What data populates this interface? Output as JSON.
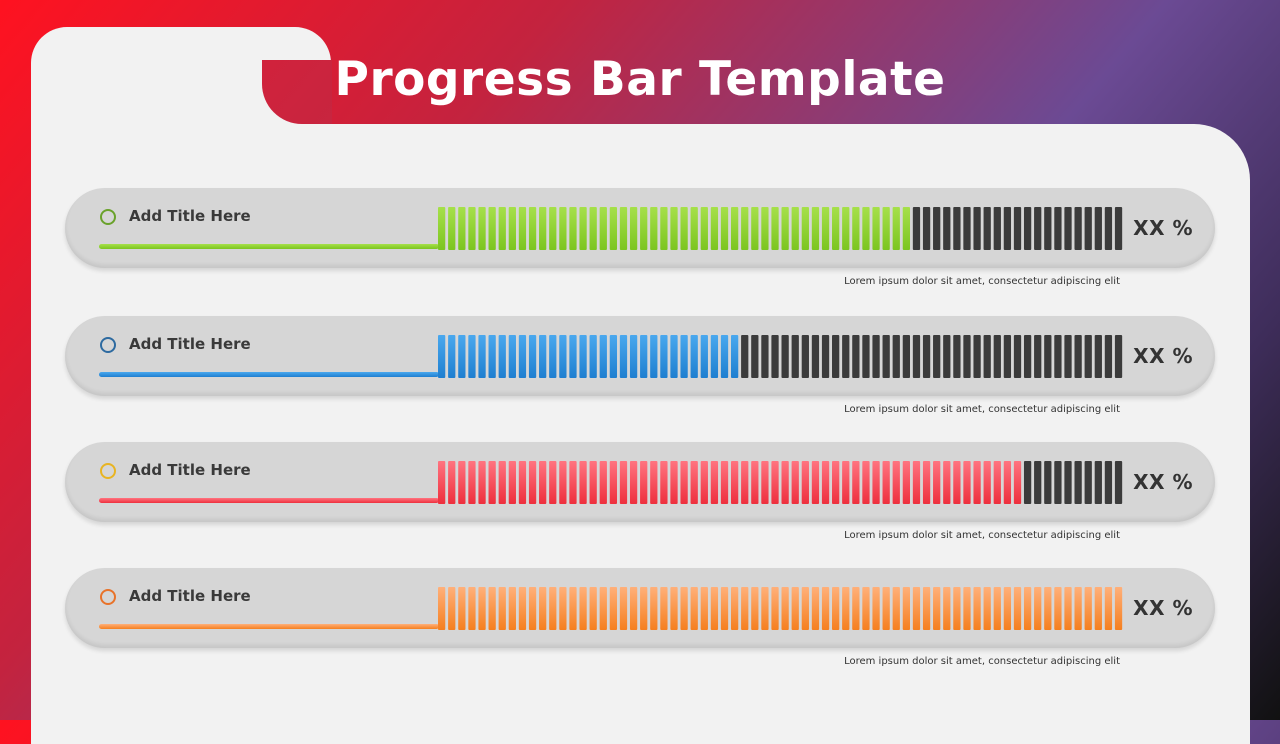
{
  "slide": {
    "title": "Progress Bar Template"
  },
  "rows": [
    {
      "label": "Add Title Here",
      "percent_label": "XX %",
      "caption": "Lorem ipsum dolor sit amet, consectetur adipiscing elit",
      "progress": 0.69,
      "color": "#7cc520",
      "color_light": "#a6e04a",
      "circle_color": "#6aa22b"
    },
    {
      "label": "Add Title Here",
      "percent_label": "XX %",
      "caption": "Lorem ipsum dolor sit amet, consectetur adipiscing elit",
      "progress": 0.44,
      "color": "#1f7fd0",
      "color_light": "#4aa8ee",
      "circle_color": "#2d6aa0"
    },
    {
      "label": "Add Title Here",
      "percent_label": "XX %",
      "caption": "Lorem ipsum dolor sit amet, consectetur adipiscing elit",
      "progress": 0.86,
      "color": "#ee2f3d",
      "color_light": "#ff7480",
      "circle_color": "#e8b422"
    },
    {
      "label": "Add Title Here",
      "percent_label": "XX %",
      "caption": "Lorem ipsum dolor sit amet, consectetur adipiscing elit",
      "progress": 1.0,
      "color": "#f57f1f",
      "color_light": "#ffb07a",
      "circle_color": "#e8732a"
    }
  ],
  "colors": {
    "empty_segment": "#3b3b3b",
    "panel": "#f2f2f2"
  }
}
